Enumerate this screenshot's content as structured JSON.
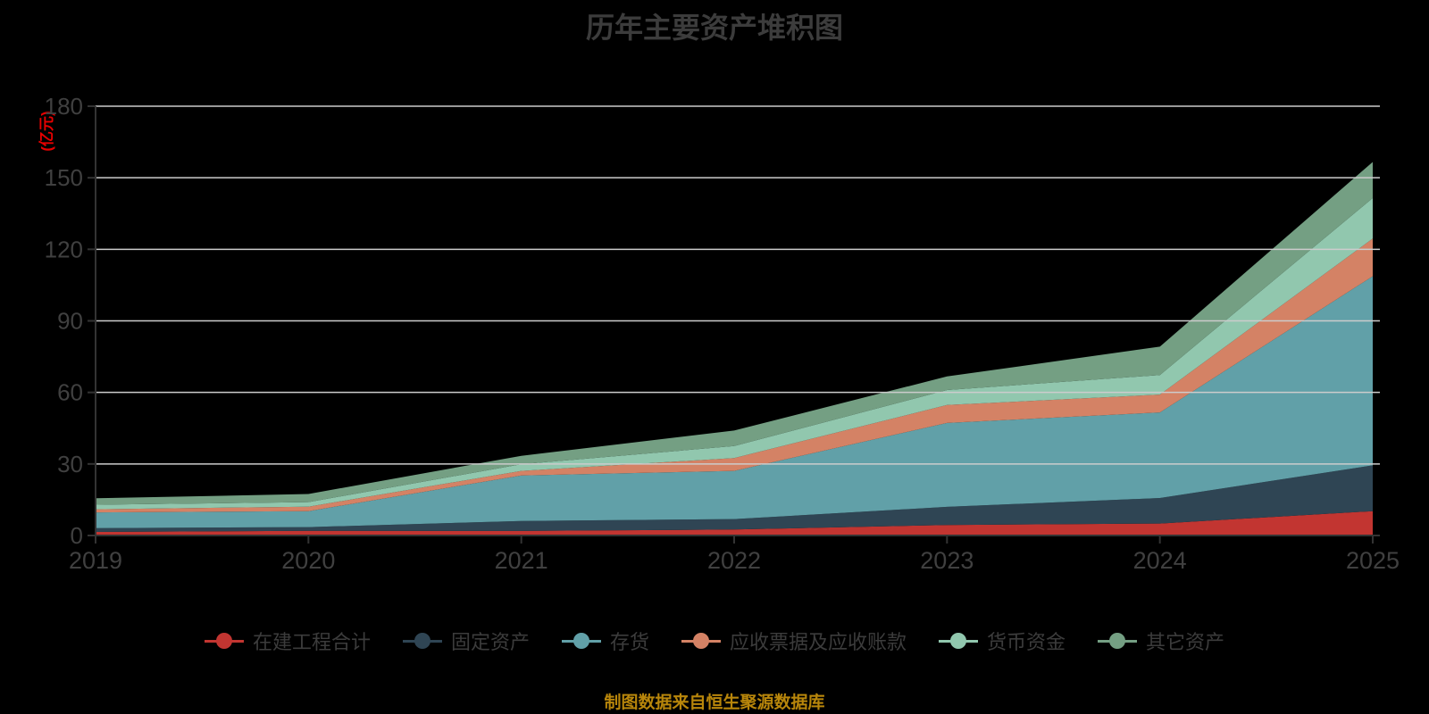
{
  "title": "历年主要资产堆积图",
  "y_axis_unit": "(亿元)",
  "source_note": "制图数据来自恒生聚源数据库",
  "colors": {
    "background": "#000000",
    "title": "#3c3c3c",
    "axis_line": "#333333",
    "tick_label": "#404040",
    "gridline": "#cccccc",
    "unit_label": "#e60000",
    "source_note": "#b8860b"
  },
  "legend": {
    "items": [
      {
        "label": "在建工程合计",
        "color": "#c23531"
      },
      {
        "label": "固定资产",
        "color": "#2f4554"
      },
      {
        "label": "存货",
        "color": "#61a0a8"
      },
      {
        "label": "应收票据及应收账款",
        "color": "#d48265"
      },
      {
        "label": "货币资金",
        "color": "#91c7ae"
      },
      {
        "label": "其它资产",
        "color": "#749f83"
      }
    ]
  },
  "chart_data": {
    "type": "area",
    "stacked": true,
    "title": "历年主要资产堆积图",
    "ylabel": "(亿元)",
    "xlabel": "",
    "categories": [
      "2019",
      "2020",
      "2021",
      "2022",
      "2023",
      "2024",
      "2025"
    ],
    "series": [
      {
        "name": "在建工程合计",
        "color": "#c23531",
        "values": [
          1.5,
          2.0,
          1.9,
          2.5,
          4.4,
          5.0,
          10.2
        ]
      },
      {
        "name": "固定资产",
        "color": "#2f4554",
        "values": [
          1.6,
          1.5,
          4.2,
          4.4,
          7.6,
          10.7,
          19.2
        ]
      },
      {
        "name": "存货",
        "color": "#61a0a8",
        "values": [
          6.6,
          6.7,
          19.1,
          20.2,
          35.2,
          35.9,
          79.3
        ]
      },
      {
        "name": "应收票据及应收账款",
        "color": "#d48265",
        "values": [
          1.3,
          1.9,
          1.9,
          5.4,
          7.5,
          7.5,
          15.8
        ]
      },
      {
        "name": "货币资金",
        "color": "#91c7ae",
        "values": [
          1.9,
          1.9,
          2.8,
          5.0,
          6.3,
          8.2,
          17.0
        ]
      },
      {
        "name": "其它资产",
        "color": "#749f83",
        "values": [
          2.7,
          3.4,
          3.5,
          6.5,
          5.7,
          11.9,
          15.1
        ]
      }
    ],
    "stack_totals": [
      15.6,
      17.4,
      33.4,
      44.0,
      66.7,
      79.2,
      156.6
    ],
    "ylim": [
      0,
      180
    ],
    "ytick_interval": 30,
    "grid": true,
    "legend_position": "bottom"
  }
}
